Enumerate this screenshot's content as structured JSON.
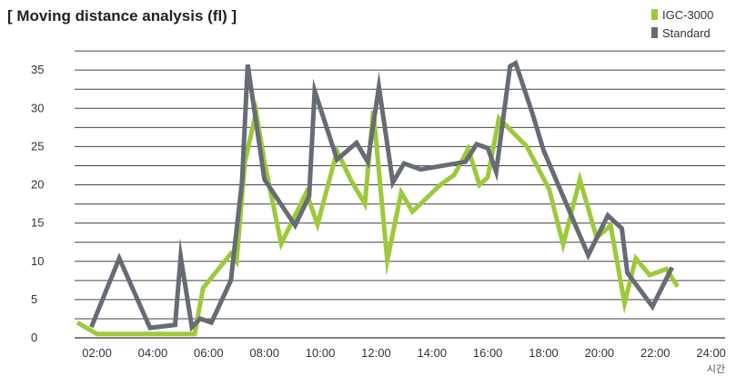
{
  "chart_data": {
    "type": "line",
    "title": "[ Moving distance analysis (fl) ]",
    "x_unit_label": "시간",
    "xlim": [
      1.2,
      24.5
    ],
    "ylim": [
      0,
      40
    ],
    "yticks": [
      {
        "v": 0,
        "label": "0"
      },
      {
        "v": 5,
        "label": "5"
      },
      {
        "v": 10,
        "label": "10"
      },
      {
        "v": 15,
        "label": "15"
      },
      {
        "v": 20,
        "label": "20"
      },
      {
        "v": 25,
        "label": "25"
      },
      {
        "v": 30,
        "label": "30"
      },
      {
        "v": 35,
        "label": "35"
      }
    ],
    "gridlines": [
      2.5,
      5,
      7.5,
      10,
      12.5,
      15,
      17.5,
      20,
      22.5,
      25,
      27.5,
      30,
      32.5,
      35,
      37.5
    ],
    "xticks": [
      {
        "v": 2,
        "label": "02:00"
      },
      {
        "v": 4,
        "label": "04:00"
      },
      {
        "v": 6,
        "label": "06:00"
      },
      {
        "v": 8,
        "label": "08:00"
      },
      {
        "v": 10,
        "label": "10:00"
      },
      {
        "v": 12,
        "label": "12:00"
      },
      {
        "v": 14,
        "label": "14:00"
      },
      {
        "v": 16,
        "label": "16:00"
      },
      {
        "v": 18,
        "label": "18:00"
      },
      {
        "v": 20,
        "label": "20:00"
      },
      {
        "v": 22,
        "label": "22:00"
      },
      {
        "v": 24,
        "label": "24:00"
      }
    ],
    "grid": true,
    "legend_position": "top-right",
    "series": [
      {
        "name": "IGC-3000",
        "color": "#9dc93b",
        "points": [
          [
            1.3,
            2
          ],
          [
            2.0,
            0.5
          ],
          [
            5.5,
            0.5
          ],
          [
            5.8,
            6.5
          ],
          [
            6.8,
            11
          ],
          [
            7.0,
            10
          ],
          [
            7.3,
            23
          ],
          [
            7.7,
            29.5
          ],
          [
            8.0,
            23
          ],
          [
            8.6,
            12.3
          ],
          [
            9.5,
            19
          ],
          [
            9.9,
            14.8
          ],
          [
            10.6,
            24.4
          ],
          [
            11.1,
            20.6
          ],
          [
            11.6,
            17.5
          ],
          [
            11.9,
            29.7
          ],
          [
            12.4,
            10.1
          ],
          [
            12.9,
            19
          ],
          [
            13.3,
            16.5
          ],
          [
            14.3,
            20
          ],
          [
            14.8,
            21.3
          ],
          [
            15.3,
            24.7
          ],
          [
            15.7,
            20
          ],
          [
            16.0,
            21
          ],
          [
            16.4,
            28.7
          ],
          [
            17.4,
            25
          ],
          [
            18.2,
            19.4
          ],
          [
            18.7,
            12.2
          ],
          [
            19.3,
            20.7
          ],
          [
            19.9,
            13.1
          ],
          [
            20.4,
            14.7
          ],
          [
            20.9,
            4.5
          ],
          [
            21.3,
            10.4
          ],
          [
            21.8,
            8.2
          ],
          [
            22.4,
            9
          ],
          [
            22.8,
            6.7
          ]
        ]
      },
      {
        "name": "Standard",
        "color": "#666c75",
        "points": [
          [
            1.8,
            1.4
          ],
          [
            2.8,
            10.4
          ],
          [
            3.9,
            1.3
          ],
          [
            4.8,
            1.7
          ],
          [
            5.0,
            10.6
          ],
          [
            5.4,
            1.4
          ],
          [
            5.7,
            2.5
          ],
          [
            6.1,
            2
          ],
          [
            6.8,
            7.5
          ],
          [
            7.2,
            20.5
          ],
          [
            7.4,
            35.7
          ],
          [
            8.0,
            20.7
          ],
          [
            9.1,
            14.7
          ],
          [
            9.6,
            18.5
          ],
          [
            9.8,
            32.3
          ],
          [
            10.6,
            23.3
          ],
          [
            11.3,
            25.5
          ],
          [
            11.7,
            23
          ],
          [
            12.1,
            32.8
          ],
          [
            12.6,
            20.3
          ],
          [
            13.0,
            22.8
          ],
          [
            13.6,
            22
          ],
          [
            15.2,
            23
          ],
          [
            15.6,
            25.3
          ],
          [
            16.0,
            24.8
          ],
          [
            16.3,
            21.7
          ],
          [
            16.8,
            35.5
          ],
          [
            17.0,
            35.9
          ],
          [
            17.6,
            29.3
          ],
          [
            18.0,
            24.5
          ],
          [
            19.6,
            10.8
          ],
          [
            20.3,
            16
          ],
          [
            20.8,
            14.3
          ],
          [
            21.0,
            8.5
          ],
          [
            21.9,
            4.1
          ],
          [
            22.6,
            9.2
          ]
        ]
      }
    ]
  }
}
